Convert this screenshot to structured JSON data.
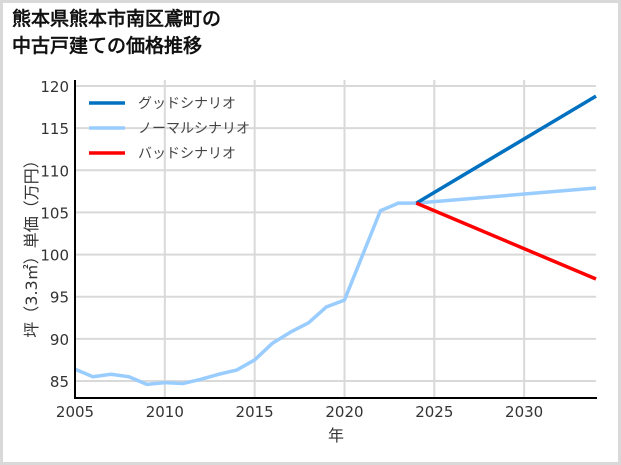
{
  "title_lines": [
    "熊本県熊本市南区鳶町の",
    "中古戸建ての価格推移"
  ],
  "chart_data": {
    "type": "line",
    "title": "熊本県熊本市南区鳶町の中古戸建ての価格推移",
    "xlabel": "年",
    "ylabel": "坪（3.3㎡）単価（万円）",
    "xlim": [
      2005,
      2034
    ],
    "ylim": [
      83,
      120
    ],
    "xticks": [
      2005,
      2010,
      2015,
      2020,
      2025,
      2030
    ],
    "yticks": [
      85,
      90,
      95,
      100,
      105,
      110,
      115,
      120
    ],
    "grid": true,
    "legend_position": "upper left",
    "series": [
      {
        "name": "グッドシナリオ",
        "color": "#0070c0",
        "x": [
          2024,
          2034
        ],
        "values": [
          106.1,
          118.8
        ]
      },
      {
        "name": "ノーマルシナリオ",
        "color": "#99ccff",
        "x": [
          2005,
          2006,
          2007,
          2008,
          2009,
          2010,
          2011,
          2012,
          2013,
          2014,
          2015,
          2016,
          2017,
          2018,
          2019,
          2020,
          2021,
          2022,
          2023,
          2024,
          2034
        ],
        "values": [
          86.4,
          85.5,
          85.8,
          85.5,
          84.6,
          84.8,
          84.7,
          85.2,
          85.8,
          86.3,
          87.5,
          89.5,
          90.8,
          91.9,
          93.8,
          94.6,
          99.9,
          105.2,
          106.1,
          106.1,
          107.9
        ]
      },
      {
        "name": "バッドシナリオ",
        "color": "#ff0000",
        "x": [
          2024,
          2034
        ],
        "values": [
          106.1,
          97.1
        ]
      }
    ]
  }
}
